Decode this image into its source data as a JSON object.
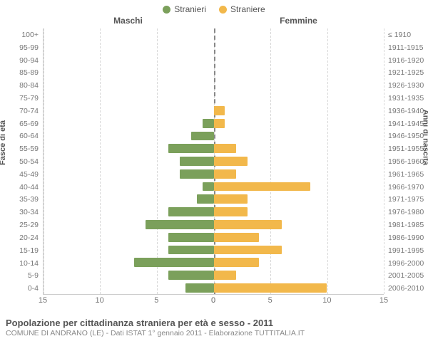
{
  "legend": {
    "male": {
      "label": "Stranieri",
      "color": "#7ba05b"
    },
    "female": {
      "label": "Straniere",
      "color": "#f2b84b"
    }
  },
  "headers": {
    "left": "Maschi",
    "right": "Femmine"
  },
  "axis_titles": {
    "left": "Fasce di età",
    "right": "Anni di nascita"
  },
  "x_axis": {
    "max": 15,
    "ticks_left": [
      15,
      10,
      5,
      0
    ],
    "ticks_right": [
      0,
      5,
      10,
      15
    ]
  },
  "rows": [
    {
      "age": "100+",
      "birth": "≤ 1910",
      "m": 0,
      "f": 0
    },
    {
      "age": "95-99",
      "birth": "1911-1915",
      "m": 0,
      "f": 0
    },
    {
      "age": "90-94",
      "birth": "1916-1920",
      "m": 0,
      "f": 0
    },
    {
      "age": "85-89",
      "birth": "1921-1925",
      "m": 0,
      "f": 0
    },
    {
      "age": "80-84",
      "birth": "1926-1930",
      "m": 0,
      "f": 0
    },
    {
      "age": "75-79",
      "birth": "1931-1935",
      "m": 0,
      "f": 0
    },
    {
      "age": "70-74",
      "birth": "1936-1940",
      "m": 0,
      "f": 1
    },
    {
      "age": "65-69",
      "birth": "1941-1945",
      "m": 1,
      "f": 1
    },
    {
      "age": "60-64",
      "birth": "1946-1950",
      "m": 2,
      "f": 0
    },
    {
      "age": "55-59",
      "birth": "1951-1955",
      "m": 4,
      "f": 2
    },
    {
      "age": "50-54",
      "birth": "1956-1960",
      "m": 3,
      "f": 3
    },
    {
      "age": "45-49",
      "birth": "1961-1965",
      "m": 3,
      "f": 2
    },
    {
      "age": "40-44",
      "birth": "1966-1970",
      "m": 1,
      "f": 8.5
    },
    {
      "age": "35-39",
      "birth": "1971-1975",
      "m": 1.5,
      "f": 3
    },
    {
      "age": "30-34",
      "birth": "1976-1980",
      "m": 4,
      "f": 3
    },
    {
      "age": "25-29",
      "birth": "1981-1985",
      "m": 6,
      "f": 6
    },
    {
      "age": "20-24",
      "birth": "1986-1990",
      "m": 4,
      "f": 4
    },
    {
      "age": "15-19",
      "birth": "1991-1995",
      "m": 4,
      "f": 6
    },
    {
      "age": "10-14",
      "birth": "1996-2000",
      "m": 7,
      "f": 4
    },
    {
      "age": "5-9",
      "birth": "2001-2005",
      "m": 4,
      "f": 2
    },
    {
      "age": "0-4",
      "birth": "2006-2010",
      "m": 2.5,
      "f": 10
    }
  ],
  "grid_color": "#d7d7d7",
  "center_color": "#888888",
  "footer": {
    "title": "Popolazione per cittadinanza straniera per età e sesso - 2011",
    "subtitle": "COMUNE DI ANDRANO (LE) - Dati ISTAT 1° gennaio 2011 - Elaborazione TUTTITALIA.IT"
  }
}
